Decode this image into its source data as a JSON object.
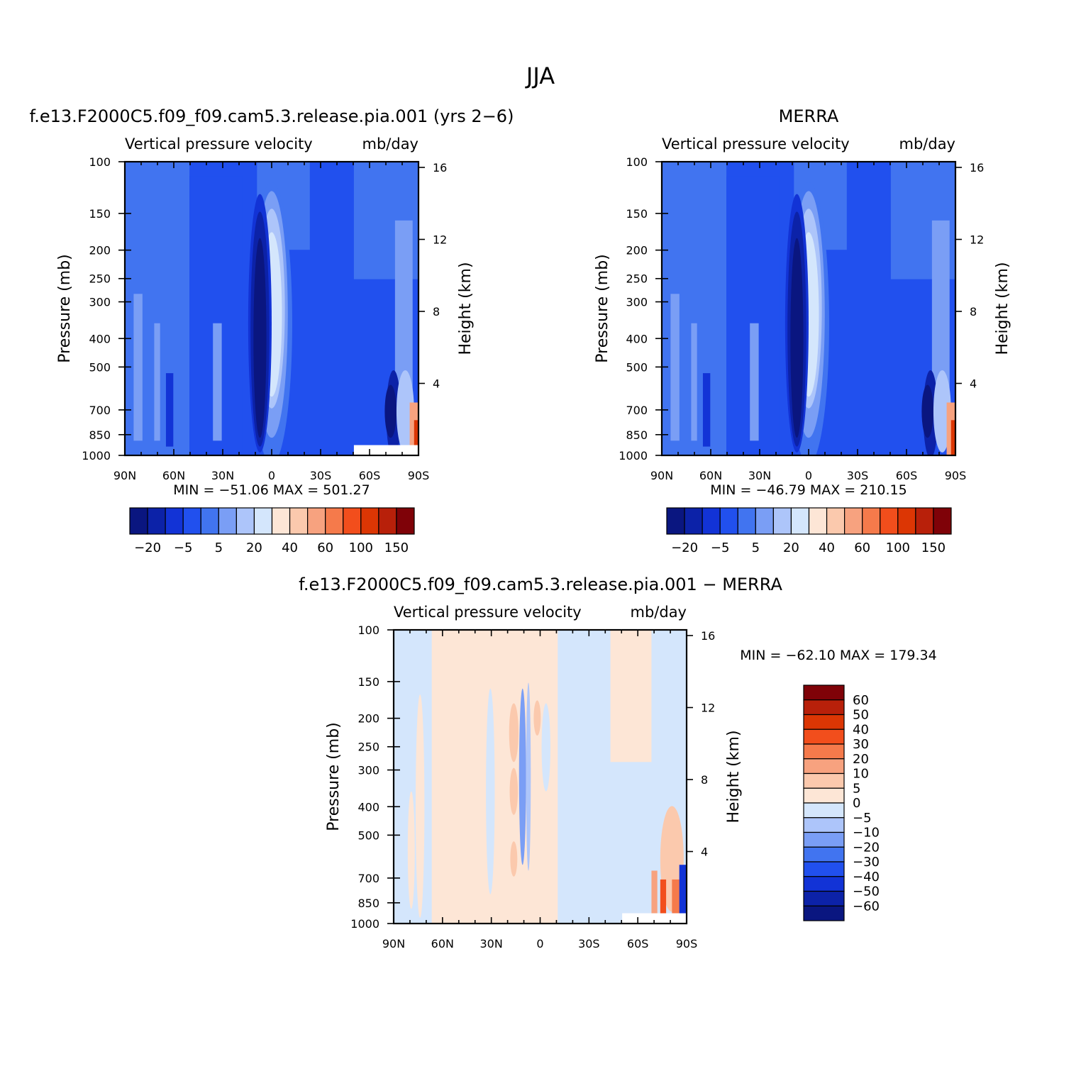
{
  "figure": {
    "title": "JJA"
  },
  "panels": [
    {
      "id": "model",
      "title": "f.e13.F2000C5.f09_f09.cam5.3.release.pia.001 (yrs 2−6)",
      "variable": "Vertical pressure velocity",
      "units": "mb/day",
      "ylabel": "Pressure (mb)",
      "ylabel_right": "Height (km)",
      "stats": "MIN = −51.06   MAX = 501.27"
    },
    {
      "id": "merra",
      "title": "MERRA",
      "variable": "Vertical pressure velocity",
      "units": "mb/day",
      "ylabel": "Pressure (mb)",
      "ylabel_right": "Height (km)",
      "stats": "MIN = −46.79   MAX = 210.15"
    },
    {
      "id": "diff",
      "title": "f.e13.F2000C5.f09_f09.cam5.3.release.pia.001 − MERRA",
      "variable": "Vertical pressure velocity",
      "units": "mb/day",
      "ylabel": "Pressure (mb)",
      "ylabel_right": "Height (km)",
      "stats": "MIN = −62.10   MAX = 179.34"
    }
  ],
  "axes": {
    "x_ticks": [
      "90N",
      "60N",
      "30N",
      "0",
      "30S",
      "60S",
      "90S"
    ],
    "pressure_ticks": [
      "100",
      "150",
      "200",
      "250",
      "300",
      "400",
      "500",
      "700",
      "850",
      "1000"
    ],
    "height_ticks": [
      "16",
      "12",
      "8",
      "4"
    ]
  },
  "colorbars": {
    "main": {
      "colors": [
        "#0a1680",
        "#0c22a8",
        "#1233d6",
        "#2150ee",
        "#4174f0",
        "#7a9ef5",
        "#adc5fa",
        "#d4e6fc",
        "#fde6d6",
        "#fbc9ad",
        "#f7a27f",
        "#f57a4b",
        "#f24e1c",
        "#dc3604",
        "#b8200a",
        "#7f0208"
      ],
      "labels": [
        "−20",
        "−5",
        "5",
        "20",
        "40",
        "60",
        "100",
        "150"
      ]
    },
    "diff": {
      "colors": [
        "#7f0208",
        "#b8200a",
        "#dc3604",
        "#f24e1c",
        "#f57a4b",
        "#f7a27f",
        "#fbc9ad",
        "#fde6d6",
        "#d4e6fc",
        "#adc5fa",
        "#7a9ef5",
        "#4174f0",
        "#2150ee",
        "#1233d6",
        "#0c22a8",
        "#0a1680"
      ],
      "labels": [
        "60",
        "50",
        "40",
        "30",
        "20",
        "10",
        "5",
        "0",
        "−5",
        "−10",
        "−20",
        "−30",
        "−40",
        "−50",
        "−60"
      ]
    }
  },
  "chart_data": [
    {
      "type": "heatmap",
      "panel": "model",
      "x_categories": [
        "90N",
        "60N",
        "30N",
        "0",
        "30S",
        "60S",
        "90S"
      ],
      "y_pressure_mb": [
        100,
        150,
        200,
        250,
        300,
        400,
        500,
        700,
        850,
        1000
      ],
      "ylog": true,
      "min": -51.06,
      "max": 501.27
    },
    {
      "type": "heatmap",
      "panel": "merra",
      "x_categories": [
        "90N",
        "60N",
        "30N",
        "0",
        "30S",
        "60S",
        "90S"
      ],
      "y_pressure_mb": [
        100,
        150,
        200,
        250,
        300,
        400,
        500,
        700,
        850,
        1000
      ],
      "ylog": true,
      "min": -46.79,
      "max": 210.15
    },
    {
      "type": "heatmap",
      "panel": "diff",
      "x_categories": [
        "90N",
        "60N",
        "30N",
        "0",
        "30S",
        "60S",
        "90S"
      ],
      "y_pressure_mb": [
        100,
        150,
        200,
        250,
        300,
        400,
        500,
        700,
        850,
        1000
      ],
      "ylog": true,
      "min": -62.1,
      "max": 179.34
    }
  ]
}
